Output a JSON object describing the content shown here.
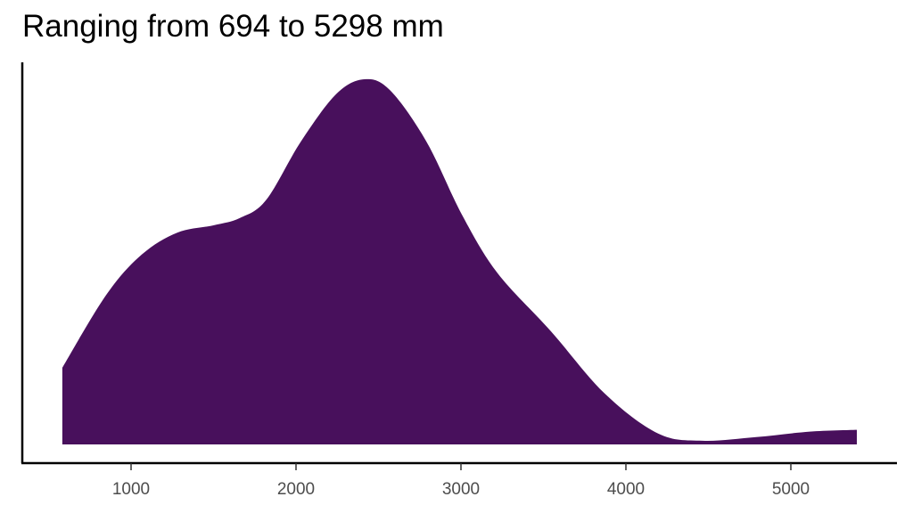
{
  "title": "Ranging from 694 to 5298 mm",
  "colors": {
    "fill": "#48105c",
    "axis": "#000000",
    "tick_label": "#4d4d4d"
  },
  "chart_data": {
    "type": "area",
    "title": "Ranging from 694 to 5298 mm",
    "xlabel": "",
    "ylabel": "",
    "x_ticks": [
      1000,
      2000,
      3000,
      4000,
      5000
    ],
    "x_tick_labels": [
      "1000",
      "2000",
      "3000",
      "4000",
      "5000"
    ],
    "xlim": [
      350,
      5650
    ],
    "grid": false,
    "legend": "none",
    "description": "Density curve (kernel density estimate) of values in mm, filled dark purple",
    "x": [
      583,
      850,
      1065,
      1280,
      1500,
      1660,
      1820,
      2030,
      2245,
      2415,
      2570,
      2790,
      3005,
      3220,
      3545,
      3870,
      4195,
      4465,
      4790,
      5115,
      5400
    ],
    "density_relative": [
      0.21,
      0.41,
      0.52,
      0.58,
      0.6,
      0.62,
      0.67,
      0.83,
      0.96,
      1.0,
      0.97,
      0.83,
      0.63,
      0.47,
      0.31,
      0.14,
      0.03,
      0.01,
      0.02,
      0.035,
      0.04
    ]
  }
}
